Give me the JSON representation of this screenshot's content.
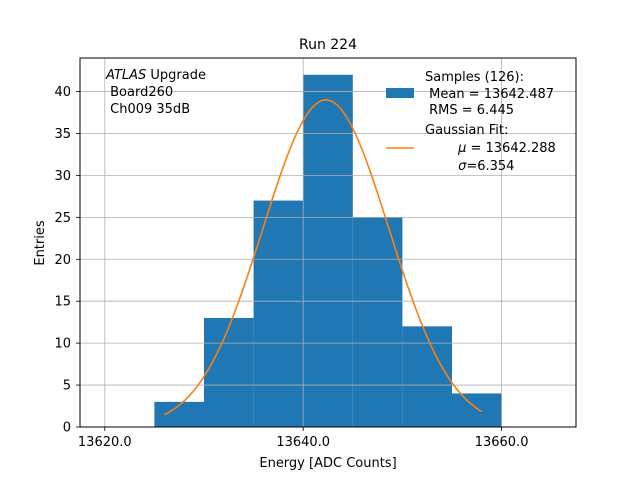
{
  "chart_data": {
    "type": "bar",
    "title": "Run 224",
    "xlabel": "Energy [ADC Counts]",
    "ylabel": "Entries",
    "xlim": [
      13617.5,
      13667.5
    ],
    "ylim": [
      0,
      44
    ],
    "x_ticks": [
      13620,
      13640,
      13660
    ],
    "x_tick_labels": [
      "13620.0",
      "13640.0",
      "13660.0"
    ],
    "y_ticks": [
      0,
      5,
      10,
      15,
      20,
      25,
      30,
      35,
      40
    ],
    "y_tick_labels": [
      "0",
      "5",
      "10",
      "15",
      "20",
      "25",
      "30",
      "35",
      "40"
    ],
    "grid": true,
    "bins": [
      {
        "x0": 13625,
        "x1": 13630,
        "value": 3
      },
      {
        "x0": 13630,
        "x1": 13635,
        "value": 13
      },
      {
        "x0": 13635,
        "x1": 13640,
        "value": 27
      },
      {
        "x0": 13640,
        "x1": 13645,
        "value": 42
      },
      {
        "x0": 13645,
        "x1": 13650,
        "value": 25
      },
      {
        "x0": 13650,
        "x1": 13655,
        "value": 12
      },
      {
        "x0": 13655,
        "x1": 13660,
        "value": 4
      }
    ],
    "fit": {
      "mu": 13642.288,
      "sigma": 6.354,
      "amplitude": 39,
      "x_range": [
        13626,
        13658
      ]
    },
    "bar_color": "#1f77b4",
    "fit_color": "#ff7f0e",
    "annotation": {
      "italic": "ATLAS",
      "line1_rest": " Upgrade",
      "line2": " Board260",
      "line3": " Ch009 35dB"
    },
    "legend_position": "top-right",
    "legend": {
      "samples_line1": "Samples (126):",
      "samples_line2": " Mean = 13642.487",
      "samples_line3": " RMS = 6.445",
      "fit_line1": "Gaussian Fit:",
      "fit_mu_symbol": "μ",
      "fit_mu_rest": " = 13642.288",
      "fit_sigma_symbol": "σ",
      "fit_sigma_rest": "=6.354"
    }
  }
}
